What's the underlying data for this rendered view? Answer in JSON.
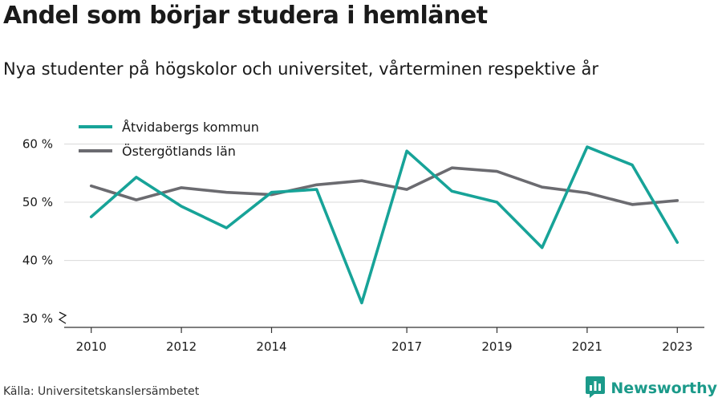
{
  "title": "Andel som börjar studera i hemlänet",
  "subtitle": "Nya studenter på högskolor och universitet, vårterminen respektive år",
  "source": "Källa: Universitetskanslersämbetet",
  "brand": {
    "name": "Newsworthy",
    "icon": "newsworthy-logo-icon",
    "color": "#1b9a8a"
  },
  "chart_data": {
    "type": "line",
    "x": [
      2010,
      2011,
      2012,
      2013,
      2014,
      2015,
      2016,
      2017,
      2018,
      2019,
      2020,
      2021,
      2022,
      2023
    ],
    "x_tick_labels": [
      "2010",
      "2012",
      "2014",
      "2017",
      "2019",
      "2021",
      "2023"
    ],
    "y_ticks": [
      30,
      40,
      50,
      60
    ],
    "y_tick_labels": [
      "30 %",
      "40 %",
      "50 %",
      "60 %"
    ],
    "ylim": [
      28.5,
      62
    ],
    "y_axis_break": true,
    "grid": true,
    "legend_position": "top-left",
    "series": [
      {
        "name": "Åtvidabergs kommun",
        "color": "#17a398",
        "values": [
          47.5,
          54.3,
          49.3,
          45.6,
          51.7,
          52.2,
          32.7,
          58.8,
          51.9,
          50.0,
          42.2,
          59.5,
          56.4,
          43.1
        ]
      },
      {
        "name": "Östergötlands län",
        "color": "#6b6b70",
        "values": [
          52.8,
          50.4,
          52.5,
          51.7,
          51.3,
          53.0,
          53.7,
          52.2,
          55.9,
          55.3,
          52.6,
          51.6,
          49.6,
          50.3
        ]
      }
    ]
  }
}
